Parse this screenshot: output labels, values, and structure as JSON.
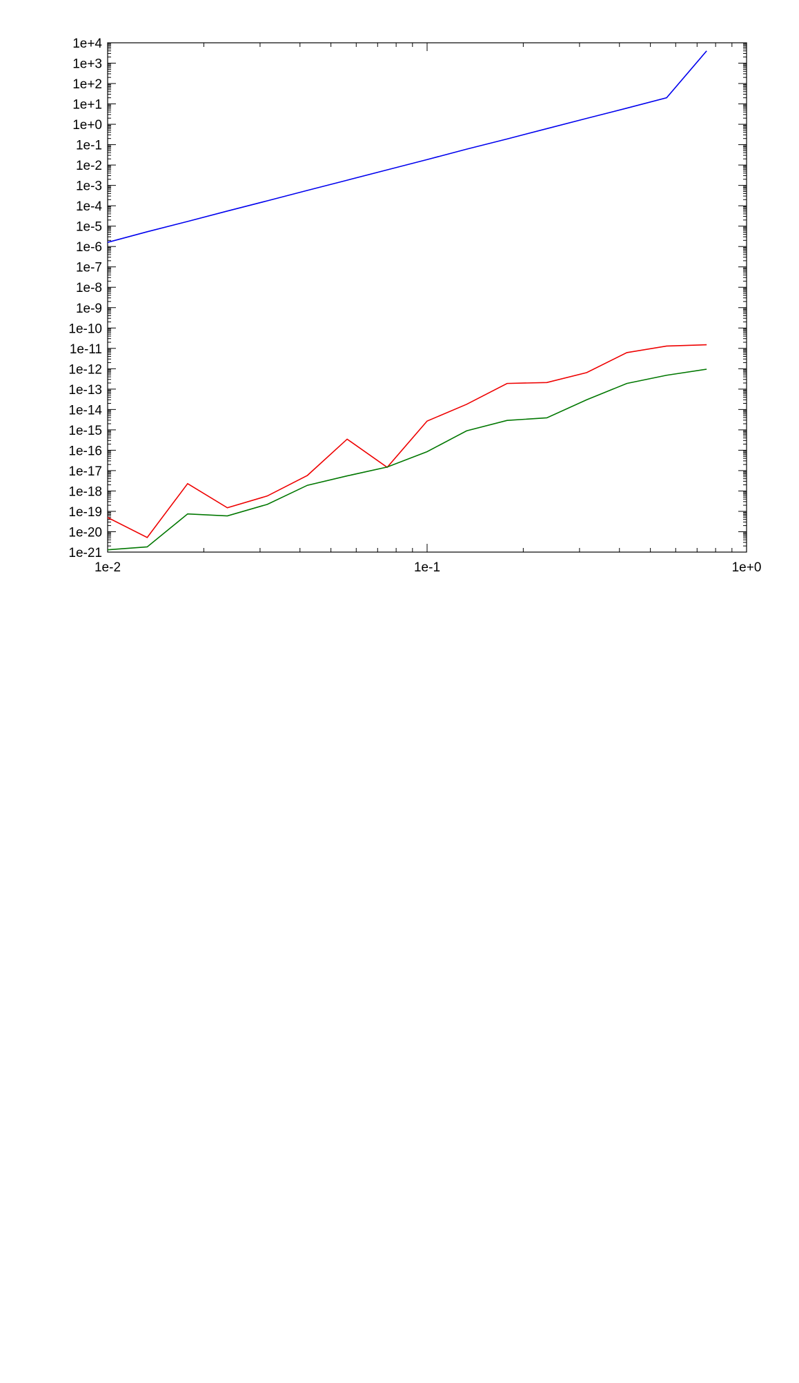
{
  "chart_data": {
    "type": "line",
    "title": "",
    "xlabel": "",
    "ylabel": "",
    "x_scale": "log",
    "y_scale": "log",
    "xlim": [
      0.01,
      1
    ],
    "ylim": [
      1e-21,
      10000.0
    ],
    "grid": false,
    "legend": "none",
    "x_ticks": [
      "1e-2",
      "1e-1",
      "1e+0"
    ],
    "y_ticks": [
      "1e+4",
      "1e+3",
      "1e+2",
      "1e+1",
      "1e+0",
      "1e-1",
      "1e-2",
      "1e-3",
      "1e-4",
      "1e-5",
      "1e-6",
      "1e-7",
      "1e-8",
      "1e-9",
      "1e-10",
      "1e-11",
      "1e-12",
      "1e-13",
      "1e-14",
      "1e-15",
      "1e-16",
      "1e-17",
      "1e-18",
      "1e-19",
      "1e-20",
      "1e-21"
    ],
    "x": [
      0.01,
      0.0133,
      0.0178,
      0.0237,
      0.0316,
      0.0422,
      0.0562,
      0.075,
      0.1,
      0.133,
      0.178,
      0.237,
      0.316,
      0.422,
      0.562,
      0.75
    ],
    "series": [
      {
        "color": "#0000ee",
        "values": [
          1.6e-06,
          5.3e-06,
          1.7e-05,
          5.5e-05,
          0.000175,
          0.00057,
          0.0018,
          0.0058,
          0.0185,
          0.06,
          0.19,
          0.61,
          1.95,
          6.2,
          20,
          4000
        ]
      },
      {
        "color": "#ee0000",
        "values": [
          5e-20,
          5.2e-21,
          2.3e-18,
          1.5e-19,
          5.7e-19,
          5.8e-18,
          3.5e-16,
          1.45e-17,
          2.7e-15,
          1.8e-14,
          1.9e-13,
          2.1e-13,
          6.5e-13,
          6.2e-12,
          1.3e-11,
          1.5e-11
        ]
      },
      {
        "color": "#007700",
        "values": [
          1.3e-21,
          1.8e-21,
          7.5e-20,
          6e-20,
          2.2e-19,
          1.9e-18,
          5.5e-18,
          1.5e-17,
          8.5e-17,
          9e-16,
          2.9e-15,
          3.9e-15,
          3e-14,
          1.9e-13,
          4.8e-13,
          9.5e-13
        ]
      }
    ]
  }
}
